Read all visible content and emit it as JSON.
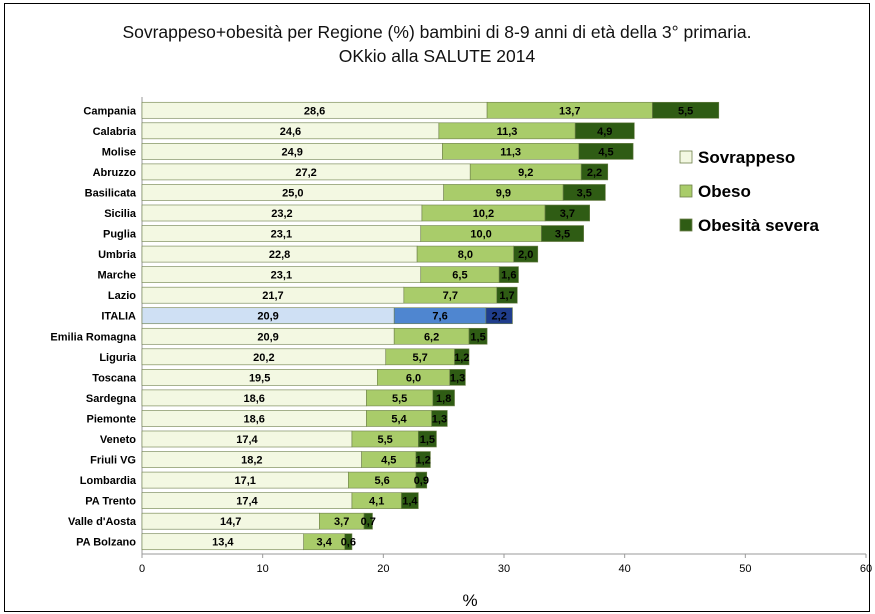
{
  "chart_data": {
    "type": "bar",
    "orientation": "horizontal",
    "stacked": true,
    "title": "Sovrappeso+obesità per Regione (%) bambini di 8-9 anni di età della 3° primaria.",
    "subtitle": "OKkio alla SALUTE 2014",
    "xlabel": "%",
    "ylabel": "",
    "xlim": [
      0,
      60
    ],
    "xticks": [
      "0",
      "10",
      "20",
      "30",
      "40",
      "50",
      "60"
    ],
    "grid": false,
    "legend_position": "right",
    "categories": [
      "Campania",
      "Calabria",
      "Molise",
      "Abruzzo",
      "Basilicata",
      "Sicilia",
      "Puglia",
      "Umbria",
      "Marche",
      "Lazio",
      "ITALIA",
      "Emilia Romagna",
      "Liguria",
      "Toscana",
      "Sardegna",
      "Piemonte",
      "Veneto",
      "Friuli VG",
      "Lombardia",
      "PA Trento",
      "Valle d'Aosta",
      "PA Bolzano"
    ],
    "highlight_category": "ITALIA",
    "series": [
      {
        "name": "Sovrappeso",
        "color": "#f3f8e2",
        "highlight_color": "#cfe0f4",
        "values": [
          28.6,
          24.6,
          24.9,
          27.2,
          25.0,
          23.2,
          23.1,
          22.8,
          23.1,
          21.7,
          20.9,
          20.9,
          20.2,
          19.5,
          18.6,
          18.6,
          17.4,
          18.2,
          17.1,
          17.4,
          14.7,
          13.4
        ],
        "labels": [
          "28,6",
          "24,6",
          "24,9",
          "27,2",
          "25,0",
          "23,2",
          "23,1",
          "22,8",
          "23,1",
          "21,7",
          "20,9",
          "20,9",
          "20,2",
          "19,5",
          "18,6",
          "18,6",
          "17,4",
          "18,2",
          "17,1",
          "17,4",
          "14,7",
          "13,4"
        ]
      },
      {
        "name": "Obeso",
        "color": "#a9cc6a",
        "highlight_color": "#4f86d0",
        "values": [
          13.7,
          11.3,
          11.3,
          9.2,
          9.9,
          10.2,
          10.0,
          8.0,
          6.5,
          7.7,
          7.6,
          6.2,
          5.7,
          6.0,
          5.5,
          5.4,
          5.5,
          4.5,
          5.6,
          4.1,
          3.7,
          3.4
        ],
        "labels": [
          "13,7",
          "11,3",
          "11,3",
          "9,2",
          "9,9",
          "10,2",
          "10,0",
          "8,0",
          "6,5",
          "7,7",
          "7,6",
          "6,2",
          "5,7",
          "6,0",
          "5,5",
          "5,4",
          "5,5",
          "4,5",
          "5,6",
          "4,1",
          "3,7",
          "3,4"
        ]
      },
      {
        "name": "Obesità severa",
        "color": "#2f5c14",
        "highlight_color": "#1f3d8c",
        "values": [
          5.5,
          4.9,
          4.5,
          2.2,
          3.5,
          3.7,
          3.5,
          2.0,
          1.6,
          1.7,
          2.2,
          1.5,
          1.2,
          1.3,
          1.8,
          1.3,
          1.5,
          1.2,
          0.9,
          1.4,
          0.7,
          0.6
        ],
        "labels": [
          "5,5",
          "4,9",
          "4,5",
          "2,2",
          "3,5",
          "3,7",
          "3,5",
          "2,0",
          "1,6",
          "1,7",
          "2,2",
          "1,5",
          "1,2",
          "1,3",
          "1,8",
          "1,3",
          "1,5",
          "1,2",
          "0,9",
          "1,4",
          "0,7",
          "0,6"
        ]
      }
    ]
  }
}
